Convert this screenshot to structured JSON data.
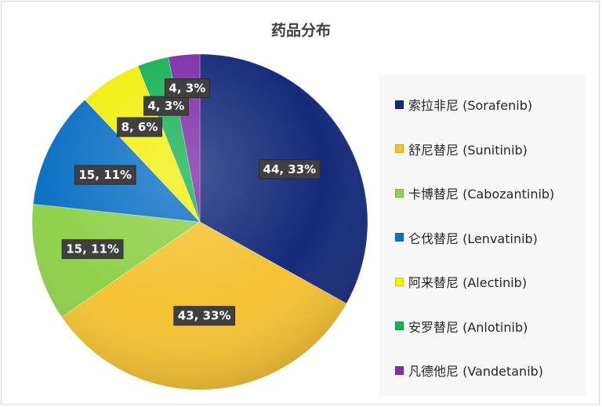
{
  "chart_data": {
    "type": "pie",
    "title": "药品分布",
    "legend_position": "right",
    "slices": [
      {
        "label": "索拉非尼 (Sorafenib)",
        "value": 44,
        "percent": "33%",
        "data_label": "44, 33%",
        "color": "#152a7a"
      },
      {
        "label": "舒尼替尼 (Sunitinib)",
        "value": 43,
        "percent": "33%",
        "data_label": "43, 33%",
        "color": "#f4c232"
      },
      {
        "label": "卡博替尼 (Cabozantinib)",
        "value": 15,
        "percent": "11%",
        "data_label": "15, 11%",
        "color": "#8fd14b"
      },
      {
        "label": "仑伐替尼 (Lenvatinib)",
        "value": 15,
        "percent": "11%",
        "data_label": "15, 11%",
        "color": "#0e72c4"
      },
      {
        "label": "阿来替尼 (Alectinib)",
        "value": 8,
        "percent": "6%",
        "data_label": "8, 6%",
        "color": "#f2ef12"
      },
      {
        "label": "安罗替尼 (Anlotinib)",
        "value": 4,
        "percent": "3%",
        "data_label": "4, 3%",
        "color": "#19b256"
      },
      {
        "label": "凡德他尼 (Vandetanib)",
        "value": 4,
        "percent": "3%",
        "data_label": "4, 3%",
        "color": "#7f2fa8"
      }
    ]
  }
}
